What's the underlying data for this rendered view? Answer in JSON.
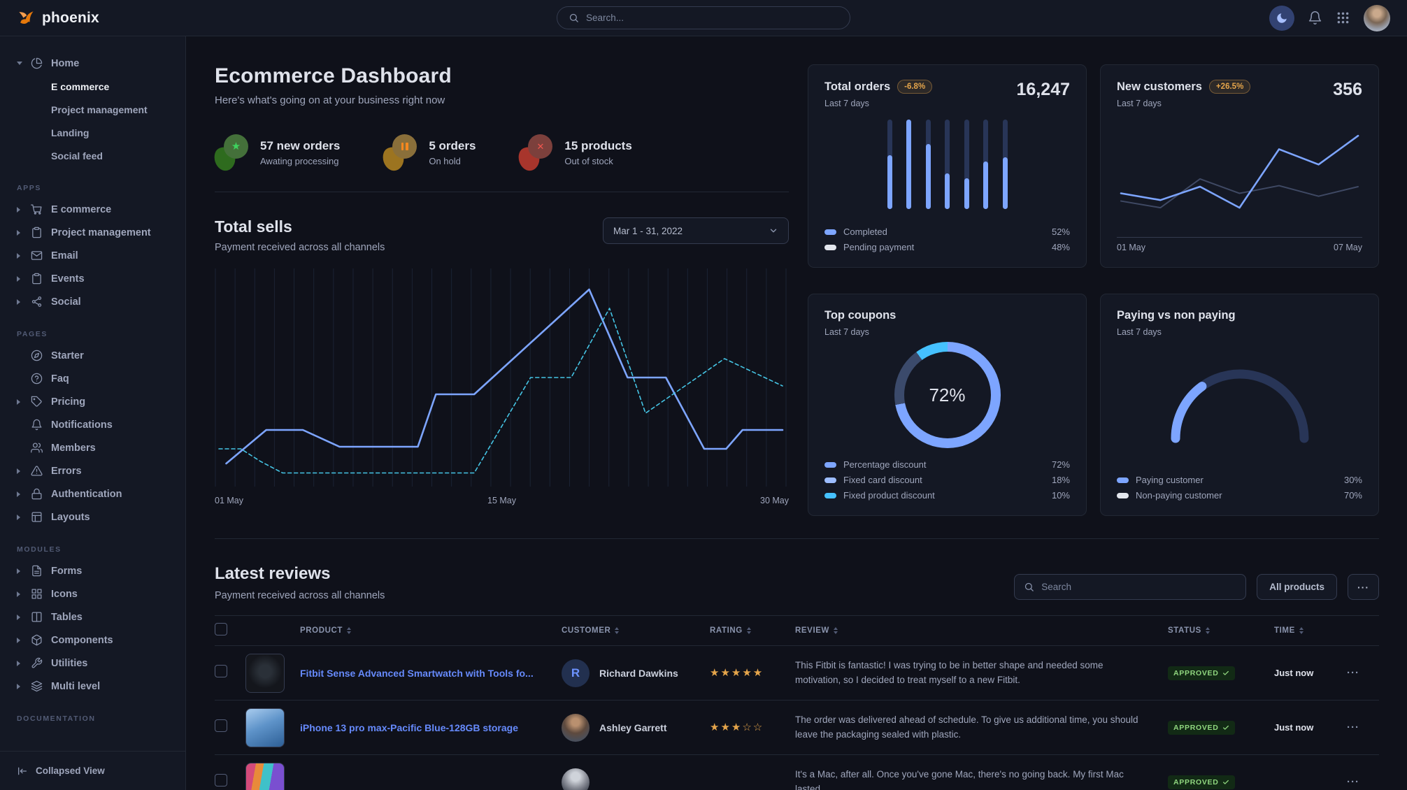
{
  "navbar": {
    "brand": "phoenix",
    "search_placeholder": "Search..."
  },
  "sidebar": {
    "home": {
      "label": "Home",
      "icon": "pie",
      "children": [
        {
          "label": "E commerce",
          "active": true
        },
        {
          "label": "Project management",
          "active": false
        },
        {
          "label": "Landing",
          "active": false
        },
        {
          "label": "Social feed",
          "active": false
        }
      ]
    },
    "sections": [
      {
        "label": "APPS",
        "items": [
          {
            "label": "E commerce",
            "icon": "cart",
            "caret": true
          },
          {
            "label": "Project management",
            "icon": "clipboard",
            "caret": true
          },
          {
            "label": "Email",
            "icon": "mail",
            "caret": true
          },
          {
            "label": "Events",
            "icon": "clipboard",
            "caret": true
          },
          {
            "label": "Social",
            "icon": "share",
            "caret": true
          }
        ]
      },
      {
        "label": "PAGES",
        "items": [
          {
            "label": "Starter",
            "icon": "compass",
            "caret": false
          },
          {
            "label": "Faq",
            "icon": "help",
            "caret": false
          },
          {
            "label": "Pricing",
            "icon": "tag",
            "caret": true
          },
          {
            "label": "Notifications",
            "icon": "bell",
            "caret": false
          },
          {
            "label": "Members",
            "icon": "users",
            "caret": false
          },
          {
            "label": "Errors",
            "icon": "alert",
            "caret": true
          },
          {
            "label": "Authentication",
            "icon": "lock",
            "caret": true
          },
          {
            "label": "Layouts",
            "icon": "layout",
            "caret": true
          }
        ]
      },
      {
        "label": "MODULES",
        "items": [
          {
            "label": "Forms",
            "icon": "file",
            "caret": true
          },
          {
            "label": "Icons",
            "icon": "grid",
            "caret": true
          },
          {
            "label": "Tables",
            "icon": "columns",
            "caret": true
          },
          {
            "label": "Components",
            "icon": "box",
            "caret": true
          },
          {
            "label": "Utilities",
            "icon": "tool",
            "caret": true
          },
          {
            "label": "Multi level",
            "icon": "layers",
            "caret": true
          }
        ]
      },
      {
        "label": "DOCUMENTATION",
        "items": []
      }
    ],
    "footer_label": "Collapsed View"
  },
  "hero": {
    "title": "Ecommerce Dashboard",
    "subtitle": "Here's what's going on at your business right now",
    "stats": [
      {
        "type": "success",
        "value_label": "57 new orders",
        "sub": "Awating processing"
      },
      {
        "type": "warning",
        "value_label": "5 orders",
        "sub": "On hold"
      },
      {
        "type": "danger",
        "value_label": "15 products",
        "sub": "Out of stock"
      }
    ]
  },
  "total_sells": {
    "title": "Total sells",
    "subtitle": "Payment received across all channels",
    "date_range": "Mar 1 - 31, 2022",
    "chart": {
      "type": "line",
      "gridlines": 30,
      "x_labels": [
        "01 May",
        "15 May",
        "30 May"
      ],
      "series": [
        {
          "name": "current",
          "style": "solid",
          "color": "#7da5ff",
          "width": 2.6,
          "points": [
            [
              1.3,
              9
            ],
            [
              8.4,
              25
            ],
            [
              14.9,
              25
            ],
            [
              21.4,
              17
            ],
            [
              35.3,
              17
            ],
            [
              38.5,
              42
            ],
            [
              45.3,
              42
            ],
            [
              65.7,
              92
            ],
            [
              72.5,
              50
            ],
            [
              79.3,
              50
            ],
            [
              86.1,
              16
            ],
            [
              90,
              16
            ],
            [
              92.9,
              25
            ],
            [
              100,
              25
            ]
          ]
        },
        {
          "name": "previous",
          "style": "dashed",
          "color": "#45c5e5",
          "width": 1.6,
          "points": [
            [
              0,
              16
            ],
            [
              3.9,
              16
            ],
            [
              7.4,
              10
            ],
            [
              11.3,
              4.5
            ],
            [
              45.3,
              4.5
            ],
            [
              55.3,
              50
            ],
            [
              62.5,
              50
            ],
            [
              69.3,
              83
            ],
            [
              75.7,
              33
            ],
            [
              89.7,
              59
            ],
            [
              100,
              46
            ]
          ]
        }
      ]
    }
  },
  "cards": {
    "total_orders": {
      "title": "Total orders",
      "badge": "-6.8%",
      "period": "Last 7 days",
      "value": "16,247",
      "chart": {
        "type": "bar",
        "track_color": "#283557",
        "bar_color": "#7da5ff",
        "fractions": [
          0.6,
          1,
          0.73,
          0.4,
          0.34,
          0.53,
          0.58
        ]
      },
      "legend": [
        {
          "label": "Completed",
          "value": "52%",
          "color": "#7da5ff"
        },
        {
          "label": "Pending payment",
          "value": "48%",
          "color": "#e3e6ed"
        }
      ]
    },
    "new_customers": {
      "title": "New customers",
      "badge": "+26.5%",
      "period": "Last 7 days",
      "value": "356",
      "chart": {
        "type": "line",
        "x_labels": [
          "01 May",
          "07 May"
        ],
        "series": [
          {
            "name": "current",
            "color": "#7da5ff",
            "width": 2.6,
            "values": [
              27,
              20,
              34,
              12,
              73,
              57,
              87
            ]
          },
          {
            "name": "previous",
            "color": "#3f4964",
            "width": 2,
            "values": [
              19,
              12,
              42,
              27,
              35,
              24,
              34
            ]
          }
        ]
      }
    },
    "top_coupons": {
      "title": "Top coupons",
      "period": "Last 7 days",
      "center_label": "72%",
      "chart": {
        "type": "donut",
        "segments": [
          {
            "value": 72,
            "color": "#7da5ff"
          },
          {
            "value": 18,
            "color": "#3b4a6b"
          },
          {
            "value": 10,
            "color": "#45c1ff"
          }
        ]
      },
      "legend": [
        {
          "label": "Percentage discount",
          "value": "72%",
          "color": "#7da5ff"
        },
        {
          "label": "Fixed card discount",
          "value": "18%",
          "color": "#9dbdff"
        },
        {
          "label": "Fixed product discount",
          "value": "10%",
          "color": "#45c1ff"
        }
      ]
    },
    "paying": {
      "title": "Paying vs non paying",
      "period": "Last 7 days",
      "chart": {
        "type": "semi-gauge",
        "percent": 30,
        "color": "#7da5ff",
        "track": "#283557"
      },
      "legend": [
        {
          "label": "Paying customer",
          "value": "30%",
          "color": "#7da5ff"
        },
        {
          "label": "Non-paying customer",
          "value": "70%",
          "color": "#e3e6ed"
        }
      ]
    }
  },
  "reviews": {
    "title": "Latest reviews",
    "subtitle": "Payment received across all channels",
    "search_placeholder": "Search",
    "filter_label": "All products",
    "more_label": "···",
    "columns": [
      "PRODUCT",
      "CUSTOMER",
      "RATING",
      "REVIEW",
      "STATUS",
      "TIME"
    ],
    "rows": [
      {
        "thumb": "smartwatch",
        "product": "Fitbit Sense Advanced Smartwatch with Tools fo...",
        "customer": "Richard Dawkins",
        "avatar": {
          "type": "initial",
          "letter": "R"
        },
        "rating": 5,
        "review": "This Fitbit is fantastic! I was trying to be in better shape and needed some motivation, so I decided to treat myself to a new Fitbit.",
        "status": "APPROVED",
        "time": "Just now"
      },
      {
        "thumb": "iphone",
        "product": "iPhone 13 pro max-Pacific Blue-128GB storage",
        "customer": "Ashley Garrett",
        "avatar": {
          "type": "photo1",
          "letter": ""
        },
        "rating": 3,
        "review": "The order was delivered ahead of schedule. To give us additional time, you should leave the packaging sealed with plastic.",
        "status": "APPROVED",
        "time": "Just now"
      },
      {
        "thumb": "macbook",
        "product": "",
        "customer": "",
        "avatar": {
          "type": "photo2",
          "letter": ""
        },
        "rating": null,
        "review": "It's a Mac, after all. Once you've gone Mac, there's no going back. My first Mac lasted",
        "status": "APPROVED",
        "time": ""
      }
    ]
  }
}
